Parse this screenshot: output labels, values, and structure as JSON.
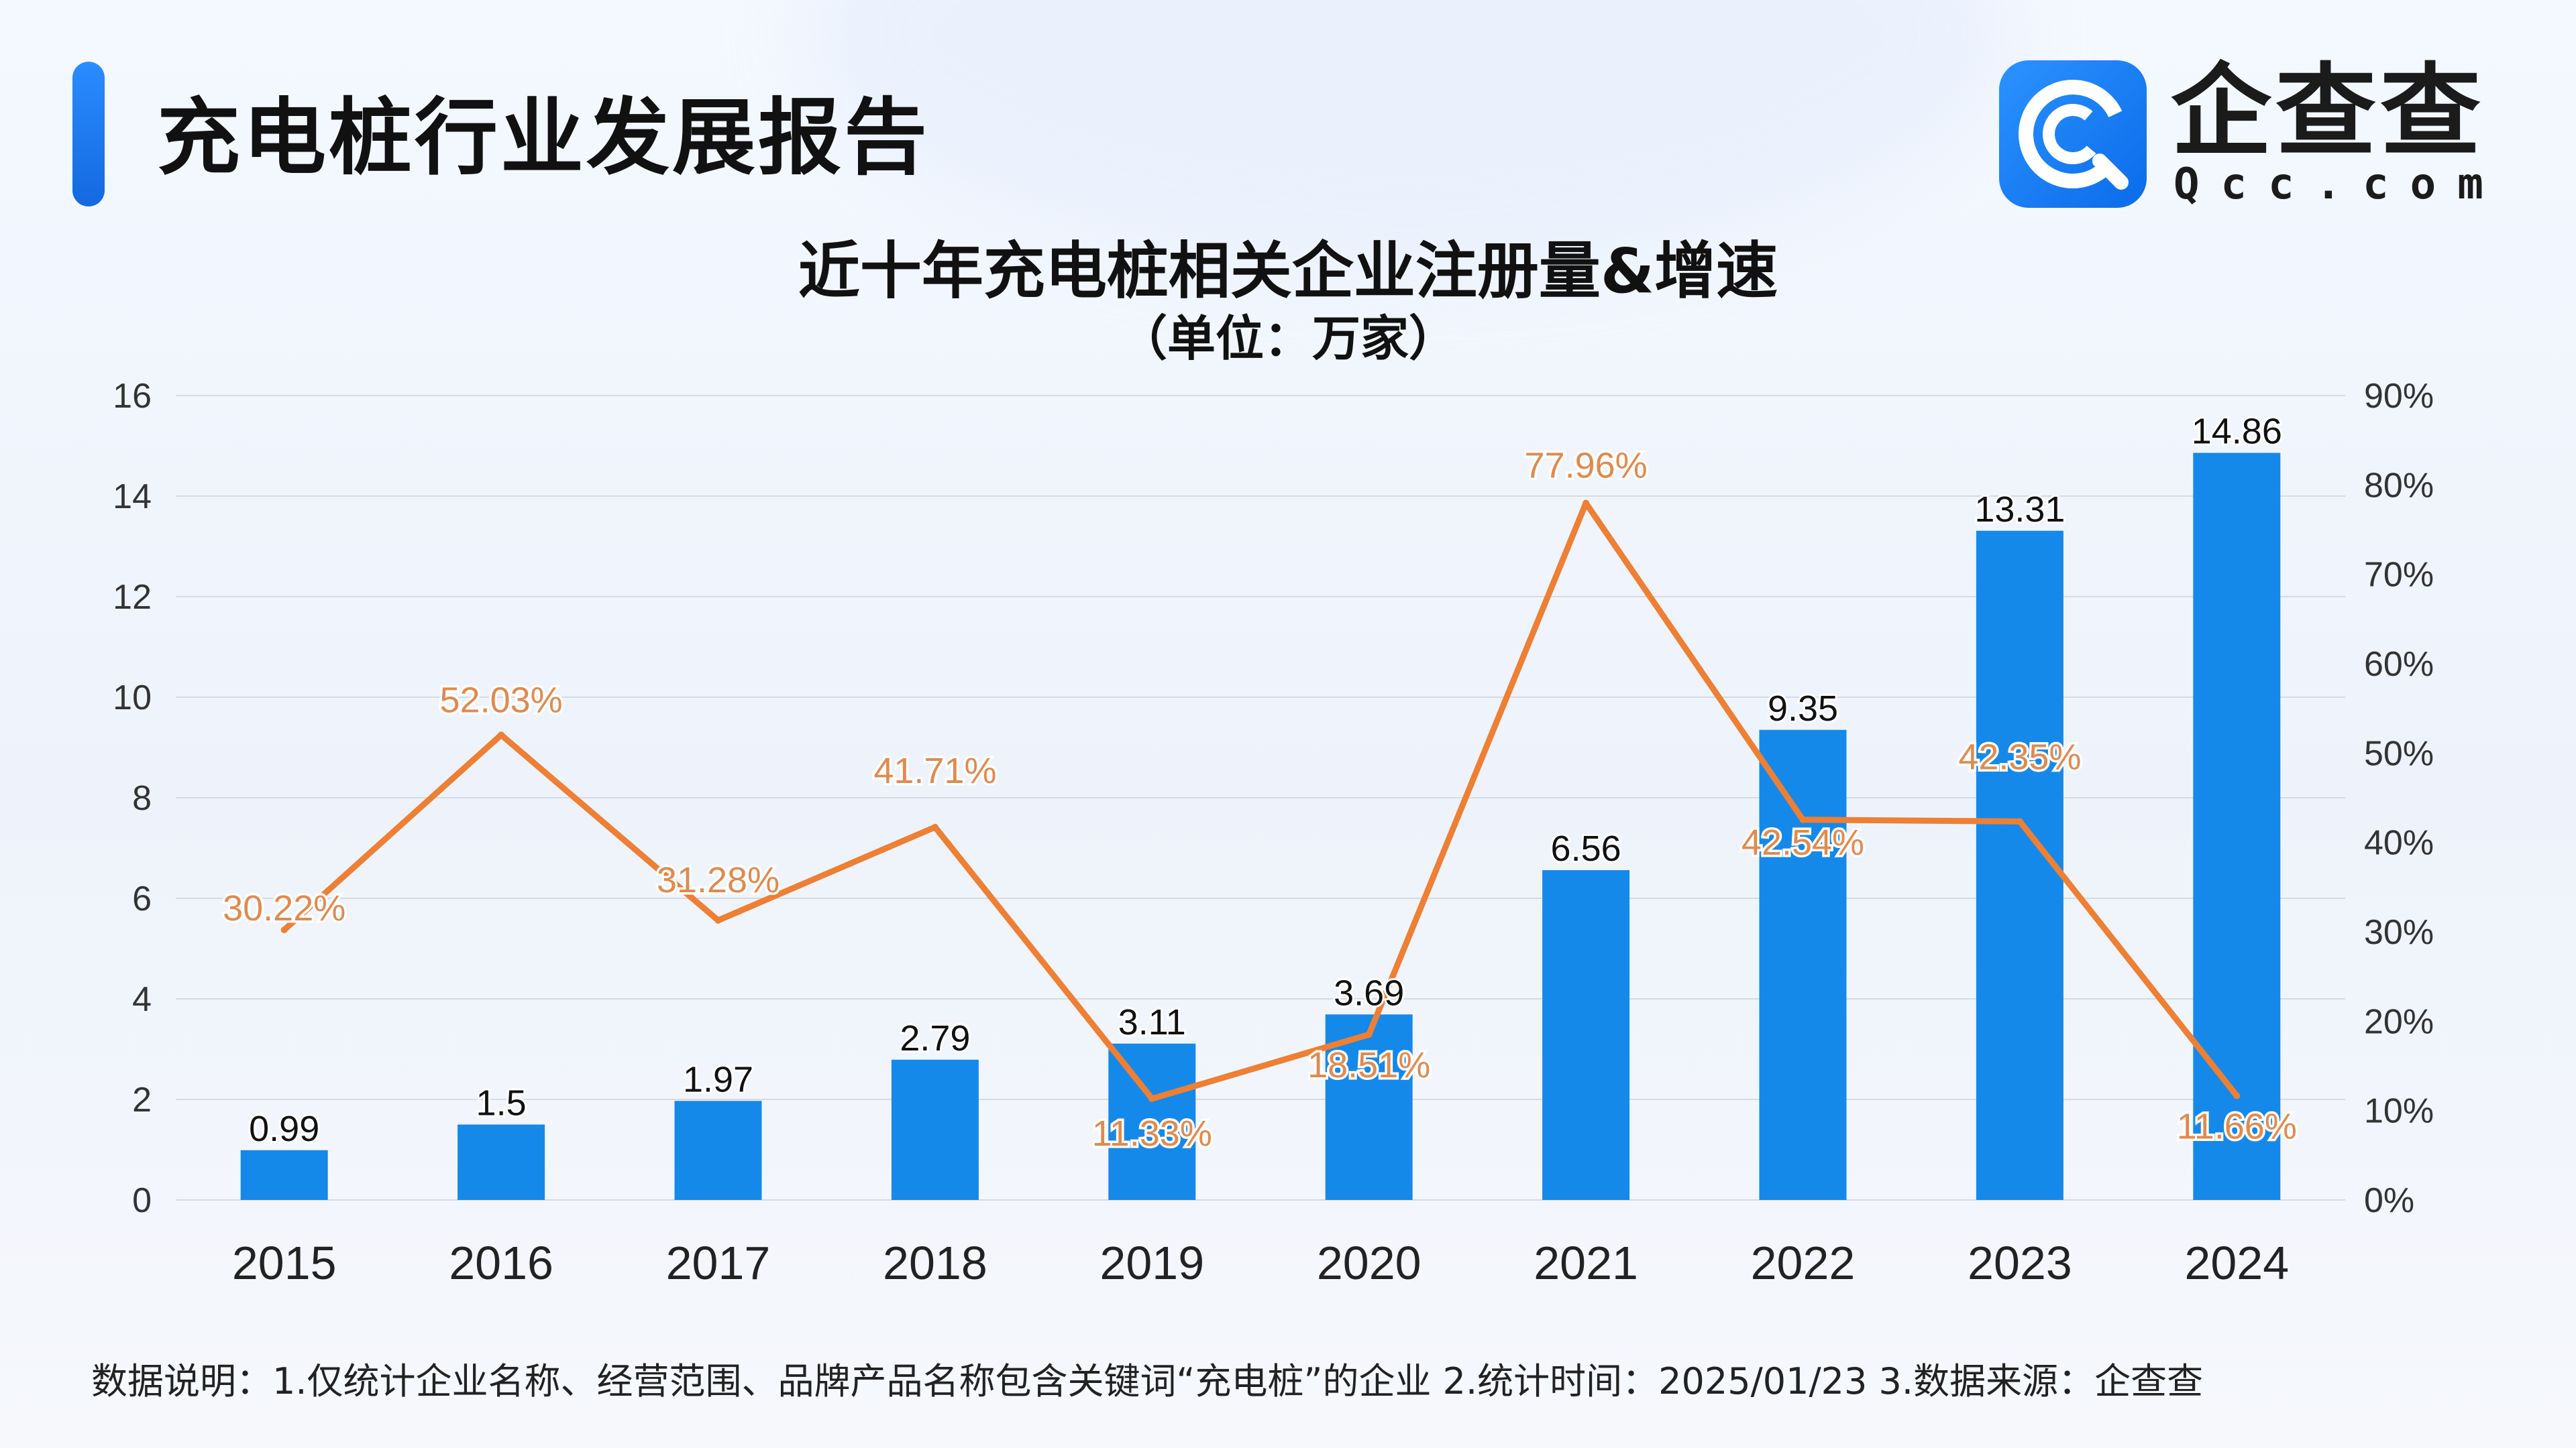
{
  "header": {
    "title": "充电桩行业发展报告",
    "logo_name": "企查查",
    "logo_domain": "Qcc.com"
  },
  "colors": {
    "bar": "#1589ea",
    "line": "#ee7f33",
    "line_label": "#e08a4e",
    "accent": "#1a7cf5",
    "grid": "#d6dae2"
  },
  "chart_data": {
    "type": "bar",
    "title": "近十年充电桩相关企业注册量&增速",
    "subtitle": "（单位：万家）",
    "categories": [
      "2015",
      "2016",
      "2017",
      "2018",
      "2019",
      "2020",
      "2021",
      "2022",
      "2023",
      "2024"
    ],
    "series": [
      {
        "kind": "bar",
        "axis": "left",
        "values": [
          0.99,
          1.5,
          1.97,
          2.79,
          3.11,
          3.69,
          6.56,
          9.35,
          13.31,
          14.86
        ],
        "labels": [
          "0.99",
          "1.5",
          "1.97",
          "2.79",
          "3.11",
          "3.69",
          "6.56",
          "9.35",
          "13.31",
          "14.86"
        ]
      },
      {
        "kind": "line",
        "axis": "right",
        "values": [
          30.22,
          52.03,
          31.28,
          41.71,
          11.33,
          18.51,
          77.96,
          42.54,
          42.35,
          11.66
        ],
        "labels": [
          "30.22%",
          "52.03%",
          "31.28%",
          "41.71%",
          "11.33%",
          "18.51%",
          "77.96%",
          "42.54%",
          "42.35%",
          "11.66%"
        ]
      }
    ],
    "left_axis": {
      "min": 0,
      "max": 16,
      "ticks": [
        "0",
        "2",
        "4",
        "6",
        "8",
        "10",
        "12",
        "14",
        "16"
      ]
    },
    "right_axis": {
      "min": 0,
      "max": 90,
      "ticks": [
        "0%",
        "10%",
        "20%",
        "30%",
        "40%",
        "50%",
        "60%",
        "70%",
        "80%",
        "90%"
      ]
    },
    "grid": true,
    "legend": "none"
  },
  "footnote": "数据说明：1.仅统计企业名称、经营范围、品牌产品名称包含关键词“充电桩”的企业   2.统计时间：2025/01/23    3.数据来源：企查查"
}
